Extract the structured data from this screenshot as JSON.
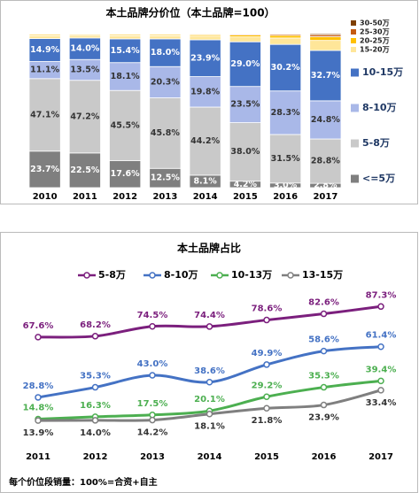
{
  "chart_data": [
    {
      "type": "stacked-bar",
      "title": "本土品牌分价位（本土品牌=100）",
      "categories": [
        "2010",
        "2011",
        "2012",
        "2013",
        "2014",
        "2015",
        "2016",
        "2017"
      ],
      "ylim": [
        0,
        100
      ],
      "series": [
        {
          "name": "<=5万",
          "color": "#7f7f7f",
          "values": [
            23.7,
            22.5,
            17.6,
            12.5,
            8.1,
            4.2,
            3.0,
            2.8
          ],
          "value_labels": [
            "23.7%",
            "22.5%",
            "17.6%",
            "12.5%",
            "8.1%",
            "4.2%",
            "3.0%",
            "2.8%"
          ]
        },
        {
          "name": "5-8万",
          "color": "#c9c9c9",
          "values": [
            47.1,
            47.2,
            45.5,
            45.8,
            44.2,
            38.0,
            31.5,
            28.8
          ],
          "value_labels": [
            "47.1%",
            "47.2%",
            "45.5%",
            "45.8%",
            "44.2%",
            "38.0%",
            "31.5%",
            "28.8%"
          ]
        },
        {
          "name": "8-10万",
          "color": "#a9b8e8",
          "values": [
            11.1,
            13.5,
            18.1,
            20.3,
            19.8,
            23.5,
            28.3,
            24.8
          ],
          "value_labels": [
            "11.1%",
            "13.5%",
            "18.1%",
            "20.3%",
            "19.8%",
            "23.5%",
            "28.3%",
            "24.8%"
          ]
        },
        {
          "name": "10-15万",
          "color": "#4472c4",
          "values": [
            14.9,
            14.0,
            15.4,
            18.0,
            23.9,
            29.0,
            30.2,
            32.7
          ],
          "value_labels": [
            "14.9%",
            "14.0%",
            "15.4%",
            "18.0%",
            "23.9%",
            "29.0%",
            "30.2%",
            "32.7%"
          ]
        },
        {
          "name": "15-20万",
          "color": "#ffe699",
          "values": [
            1.8,
            1.6,
            2.0,
            2.0,
            2.4,
            3.2,
            4.2,
            6.5
          ]
        },
        {
          "name": "20-25万",
          "color": "#ffc000",
          "values": [
            0.8,
            0.7,
            0.8,
            0.8,
            0.9,
            1.2,
            1.6,
            2.4
          ]
        },
        {
          "name": "25-30万",
          "color": "#c55a11",
          "values": [
            0.4,
            0.3,
            0.4,
            0.4,
            0.5,
            0.6,
            0.8,
            1.3
          ]
        },
        {
          "name": "30-50万",
          "color": "#7f3f00",
          "values": [
            0.2,
            0.2,
            0.2,
            0.2,
            0.2,
            0.3,
            0.4,
            0.7
          ]
        }
      ]
    },
    {
      "type": "line",
      "title": "本土品牌占比",
      "categories": [
        "2011",
        "2012",
        "2013",
        "2014",
        "2015",
        "2016",
        "2017"
      ],
      "ylim": [
        0,
        100
      ],
      "series": [
        {
          "name": "5-8万",
          "color": "#7b1f7d",
          "values": [
            67.6,
            68.2,
            74.5,
            74.4,
            78.6,
            82.6,
            87.3
          ],
          "value_labels": [
            "67.6%",
            "68.2%",
            "74.5%",
            "74.4%",
            "78.6%",
            "82.6%",
            "87.3%"
          ]
        },
        {
          "name": "8-10万",
          "color": "#4472c4",
          "values": [
            28.8,
            35.3,
            43.0,
            38.6,
            49.9,
            58.6,
            61.4
          ],
          "value_labels": [
            "28.8%",
            "35.3%",
            "43.0%",
            "38.6%",
            "49.9%",
            "58.6%",
            "61.4%"
          ]
        },
        {
          "name": "10-13万",
          "color": "#4caf50",
          "values": [
            14.8,
            16.3,
            17.5,
            20.1,
            29.2,
            35.3,
            39.4
          ],
          "value_labels": [
            "14.8%",
            "16.3%",
            "17.5%",
            "20.1%",
            "29.2%",
            "35.3%",
            "39.4%"
          ]
        },
        {
          "name": "13-15万",
          "color": "#7f7f7f",
          "values": [
            13.9,
            14.0,
            14.2,
            18.1,
            21.8,
            23.9,
            33.4
          ],
          "value_labels": [
            "13.9%",
            "14.0%",
            "14.2%",
            "18.1%",
            "21.8%",
            "23.9%",
            "33.4%"
          ]
        }
      ],
      "note": "每个价位段销量：100%=合资+自主"
    }
  ]
}
